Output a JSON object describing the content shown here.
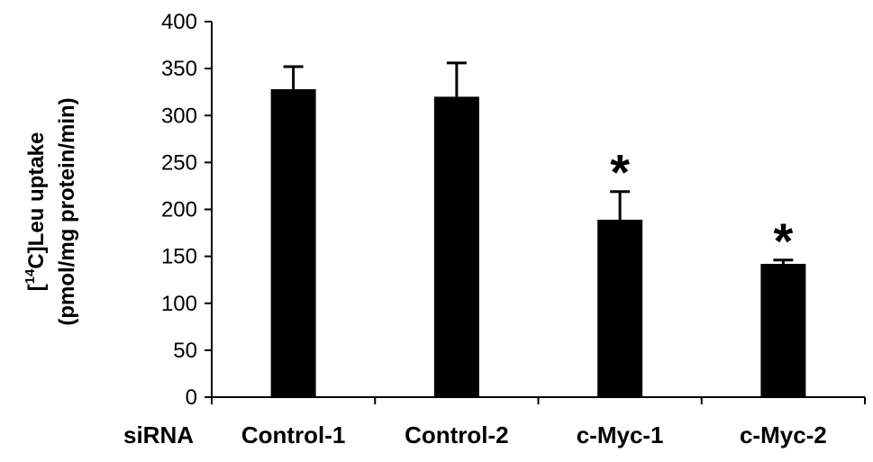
{
  "chart_data": {
    "type": "bar",
    "categories": [
      "Control-1",
      "Control-2",
      "c-Myc-1",
      "c-Myc-2"
    ],
    "values": [
      328,
      320,
      189,
      142
    ],
    "error_upper": [
      352,
      356,
      219,
      146
    ],
    "significance": [
      "",
      "",
      "*",
      "*"
    ],
    "x_prefix_label": "siRNA",
    "ylabel_line1_prefix": "[",
    "ylabel_line1_superscript": "14",
    "ylabel_line1_suffix": "C]Leu uptake",
    "ylabel_line2": "(pmol/mg protein/min)",
    "ylim": [
      0,
      400
    ],
    "yticks": [
      0,
      50,
      100,
      150,
      200,
      250,
      300,
      350,
      400
    ],
    "grid": false,
    "legend": "none",
    "bar_color": "#000000"
  }
}
